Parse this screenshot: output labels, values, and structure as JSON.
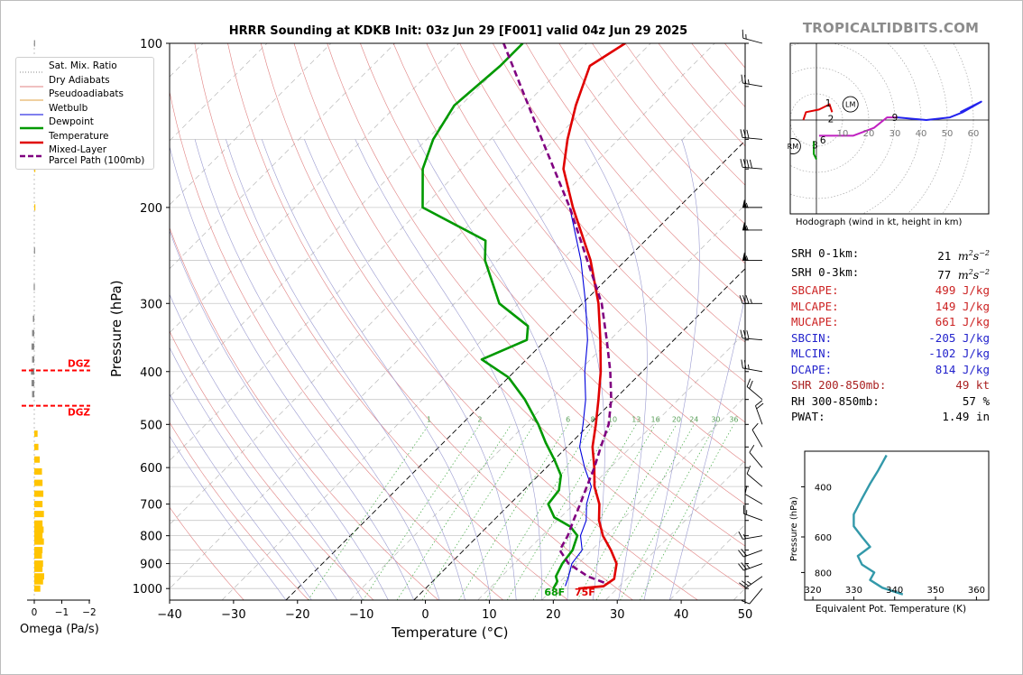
{
  "header": {
    "title": "HRRR Sounding at KDKB Init: 03z Jun 29 [F001] valid 04z Jun 29 2025",
    "brand": "TROPICALTIDBITS.COM"
  },
  "colors": {
    "temperature": "#e00000",
    "dewpoint": "#009900",
    "wetbulb": "#0000dd",
    "parcel": "#800080",
    "dry_adiabat": "#e08080",
    "pseudoadiabat": "#9a9ad0",
    "mixing_ratio": "#44aa44",
    "dgz": "#ff0000",
    "omega": "#ffc400",
    "theta_e": "#3399aa"
  },
  "legend": {
    "items": [
      {
        "label": "Sat. Mix. Ratio",
        "style": "dotted-gray"
      },
      {
        "label": "Dry Adiabats",
        "style": "red-thin"
      },
      {
        "label": "Pseudoadiabats",
        "style": "orange-thin"
      },
      {
        "label": "Wetbulb",
        "style": "blue-thin"
      },
      {
        "label": "Dewpoint",
        "style": "green-thick"
      },
      {
        "label": "Temperature",
        "style": "red-thick"
      },
      {
        "label": "Mixed-Layer",
        "style": "purple-dashed"
      },
      {
        "label": "Parcel Path (100mb)",
        "style": "none"
      }
    ]
  },
  "chart_data": [
    {
      "type": "skew-t",
      "title": "HRRR Sounding at KDKB Init: 03z Jun 29 [F001] valid 04z Jun 29 2025",
      "xlabel": "Temperature (°C)",
      "ylabel": "Pressure (hPa)",
      "xlim": [
        -40,
        50
      ],
      "ylim": [
        1050,
        100
      ],
      "log_y": true,
      "grid": true,
      "x_ticks": [
        -40,
        -30,
        -20,
        -10,
        0,
        10,
        20,
        30,
        40,
        50
      ],
      "x_tick_labels": [
        "−40",
        "−30",
        "−20",
        "−10",
        "0",
        "10",
        "20",
        "30",
        "40",
        "50"
      ],
      "y_ticks": [
        1000,
        900,
        800,
        700,
        600,
        500,
        400,
        300,
        200,
        100
      ],
      "y_tick_labels": [
        "1000",
        "900",
        "800",
        "700",
        "600",
        "500",
        "400",
        "300",
        "200",
        "100"
      ],
      "mixing_ratio_labels": [
        "1",
        "2",
        "3",
        "4",
        "6",
        "8",
        "10",
        "13",
        "16",
        "20",
        "24",
        "30",
        "36"
      ],
      "surface_labels": {
        "dewpoint": "68F",
        "temperature": "75F"
      },
      "series": [
        {
          "name": "Temperature",
          "points": [
            [
              1000,
              23.9
            ],
            [
              990,
              27.5
            ],
            [
              960,
              28
            ],
            [
              900,
              26
            ],
            [
              850,
              23
            ],
            [
              800,
              19.5
            ],
            [
              750,
              16.5
            ],
            [
              700,
              14
            ],
            [
              650,
              10.5
            ],
            [
              600,
              7.5
            ],
            [
              550,
              4
            ],
            [
              500,
              1
            ],
            [
              450,
              -2.5
            ],
            [
              400,
              -6.5
            ],
            [
              350,
              -11.5
            ],
            [
              300,
              -17.5
            ],
            [
              250,
              -25.5
            ],
            [
              200,
              -36.5
            ],
            [
              170,
              -44
            ],
            [
              150,
              -48
            ],
            [
              130,
              -52
            ],
            [
              110,
              -56
            ],
            [
              100,
              -54
            ]
          ]
        },
        {
          "name": "Dewpoint",
          "points": [
            [
              1000,
              20
            ],
            [
              970,
              19.5
            ],
            [
              950,
              18.5
            ],
            [
              900,
              17.5
            ],
            [
              850,
              17
            ],
            [
              800,
              15.5
            ],
            [
              770,
              13
            ],
            [
              740,
              9
            ],
            [
              700,
              6
            ],
            [
              660,
              5.5
            ],
            [
              620,
              3.5
            ],
            [
              580,
              0
            ],
            [
              540,
              -4
            ],
            [
              500,
              -8
            ],
            [
              450,
              -14
            ],
            [
              410,
              -20
            ],
            [
              380,
              -27
            ],
            [
              350,
              -23
            ],
            [
              330,
              -25
            ],
            [
              300,
              -33
            ],
            [
              250,
              -42
            ],
            [
              230,
              -45
            ],
            [
              200,
              -60
            ],
            [
              170,
              -66
            ],
            [
              150,
              -69
            ],
            [
              130,
              -71
            ],
            [
              110,
              -70
            ],
            [
              100,
              -70
            ]
          ]
        },
        {
          "name": "Wetbulb",
          "points": [
            [
              990,
              21.5
            ],
            [
              950,
              20.5
            ],
            [
              900,
              19
            ],
            [
              850,
              18.5
            ],
            [
              800,
              16
            ],
            [
              750,
              14.5
            ],
            [
              700,
              12
            ],
            [
              650,
              10
            ],
            [
              600,
              6
            ],
            [
              550,
              2
            ],
            [
              500,
              -1
            ],
            [
              450,
              -4.5
            ],
            [
              400,
              -9
            ],
            [
              350,
              -13.5
            ],
            [
              300,
              -19.5
            ],
            [
              250,
              -27
            ],
            [
              200,
              -37
            ]
          ]
        },
        {
          "name": "Mixed-Layer Parcel Path (100mb)",
          "points": [
            [
              975,
              27
            ],
            [
              950,
              23.5
            ],
            [
              900,
              18.5
            ],
            [
              850,
              15
            ],
            [
              800,
              14
            ],
            [
              750,
              12.5
            ],
            [
              700,
              11
            ],
            [
              650,
              9.3
            ],
            [
              600,
              7.5
            ],
            [
              550,
              5.3
            ],
            [
              500,
              3
            ],
            [
              450,
              -0.5
            ],
            [
              400,
              -5
            ],
            [
              350,
              -10.5
            ],
            [
              300,
              -17
            ],
            [
              250,
              -26
            ],
            [
              200,
              -37
            ],
            [
              150,
              -52
            ],
            [
              100,
              -73
            ]
          ]
        }
      ]
    },
    {
      "type": "line",
      "title": "Hodograph (wind in kt, height in km)",
      "rings": [
        10,
        20,
        30,
        40,
        50,
        60
      ],
      "height_labels": [
        "1",
        "2",
        "3",
        "6",
        "9"
      ],
      "markers": [
        "LM",
        "RM"
      ],
      "series": [
        {
          "name": "0-3 km",
          "color": "#e00000",
          "points": [
            [
              -5,
              0
            ],
            [
              -4,
              3
            ],
            [
              1,
              4
            ],
            [
              5,
              6
            ],
            [
              6,
              3
            ]
          ]
        },
        {
          "name": "3-6 km",
          "color": "#009900",
          "points": [
            [
              -1,
              -8
            ],
            [
              -1,
              -13
            ],
            [
              0,
              -15
            ]
          ]
        },
        {
          "name": "6-9 km",
          "color": "#c020c0",
          "points": [
            [
              1,
              -6
            ],
            [
              6,
              -6
            ],
            [
              14,
              -6
            ],
            [
              22,
              -3
            ],
            [
              27,
              1
            ],
            [
              31,
              1
            ]
          ]
        },
        {
          "name": "9+ km",
          "color": "#2222ee",
          "points": [
            [
              31,
              1
            ],
            [
              42,
              0
            ],
            [
              51,
              1
            ],
            [
              56,
              3
            ],
            [
              63,
              7
            ],
            [
              55,
              3
            ]
          ]
        }
      ]
    },
    {
      "type": "line",
      "xlabel": "Equivalent Pot. Temperature (K)",
      "ylabel": "Pressure (hPa)",
      "xlim": [
        318,
        363
      ],
      "ylim": [
        1000,
        300
      ],
      "x_ticks": [
        320,
        330,
        340,
        350,
        360
      ],
      "y_ticks": [
        400,
        600,
        800
      ],
      "series": [
        {
          "name": "Theta-E",
          "points": [
            [
              342,
              955
            ],
            [
              337,
              905
            ],
            [
              334,
              850
            ],
            [
              335,
              800
            ],
            [
              332,
              750
            ],
            [
              331,
              700
            ],
            [
              334,
              650
            ],
            [
              332,
              600
            ],
            [
              330,
              550
            ],
            [
              330,
              500
            ],
            [
              332,
              440
            ],
            [
              334,
              390
            ],
            [
              336,
              350
            ],
            [
              338,
              310
            ]
          ]
        }
      ]
    },
    {
      "type": "bar",
      "xlabel": "Omega (Pa/s)",
      "x_ticks": [
        "0",
        "−1",
        "−2"
      ],
      "dgz_label": "DGZ",
      "dgz_levels_hpa": [
        398,
        462
      ],
      "values_pa_s": [
        [
          1000,
          -0.22
        ],
        [
          970,
          -0.32
        ],
        [
          950,
          -0.36
        ],
        [
          920,
          -0.3
        ],
        [
          900,
          -0.32
        ],
        [
          870,
          -0.28
        ],
        [
          850,
          -0.3
        ],
        [
          820,
          -0.35
        ],
        [
          800,
          -0.3
        ],
        [
          780,
          -0.34
        ],
        [
          760,
          -0.3
        ],
        [
          730,
          -0.35
        ],
        [
          700,
          -0.3
        ],
        [
          670,
          -0.33
        ],
        [
          640,
          -0.3
        ],
        [
          610,
          -0.28
        ],
        [
          580,
          -0.2
        ],
        [
          550,
          -0.15
        ],
        [
          520,
          -0.12
        ],
        [
          440,
          0.08
        ],
        [
          420,
          0.1
        ],
        [
          400,
          0.12
        ],
        [
          380,
          0.08
        ],
        [
          360,
          0.1
        ],
        [
          340,
          0.08
        ],
        [
          320,
          0.05
        ],
        [
          280,
          0.02
        ],
        [
          240,
          0.01
        ],
        [
          200,
          -0.02
        ],
        [
          170,
          -0.03
        ],
        [
          150,
          -0.03
        ],
        [
          130,
          -0.02
        ],
        [
          115,
          -0.03
        ],
        [
          100,
          0.01
        ]
      ]
    }
  ],
  "wind_barbs": [
    {
      "p": 1000,
      "speed_kt": 10,
      "dir_deg": 220
    },
    {
      "p": 950,
      "speed_kt": 25,
      "dir_deg": 235
    },
    {
      "p": 900,
      "speed_kt": 25,
      "dir_deg": 250
    },
    {
      "p": 850,
      "speed_kt": 20,
      "dir_deg": 250
    },
    {
      "p": 800,
      "speed_kt": 15,
      "dir_deg": 260
    },
    {
      "p": 750,
      "speed_kt": 15,
      "dir_deg": 290
    },
    {
      "p": 700,
      "speed_kt": 10,
      "dir_deg": 300
    },
    {
      "p": 650,
      "speed_kt": 10,
      "dir_deg": 310
    },
    {
      "p": 600,
      "speed_kt": 10,
      "dir_deg": 320
    },
    {
      "p": 550,
      "speed_kt": 10,
      "dir_deg": 330
    },
    {
      "p": 500,
      "speed_kt": 20,
      "dir_deg": 340
    },
    {
      "p": 450,
      "speed_kt": 20,
      "dir_deg": 310
    },
    {
      "p": 400,
      "speed_kt": 25,
      "dir_deg": 280
    },
    {
      "p": 350,
      "speed_kt": 30,
      "dir_deg": 275
    },
    {
      "p": 300,
      "speed_kt": 35,
      "dir_deg": 270
    },
    {
      "p": 250,
      "speed_kt": 55,
      "dir_deg": 270
    },
    {
      "p": 220,
      "speed_kt": 55,
      "dir_deg": 270
    },
    {
      "p": 200,
      "speed_kt": 55,
      "dir_deg": 270
    },
    {
      "p": 170,
      "speed_kt": 40,
      "dir_deg": 275
    },
    {
      "p": 150,
      "speed_kt": 30,
      "dir_deg": 275
    },
    {
      "p": 120,
      "speed_kt": 25,
      "dir_deg": 280
    },
    {
      "p": 100,
      "speed_kt": 15,
      "dir_deg": 285
    }
  ],
  "parameters": [
    {
      "label": "SRH 0-1km:",
      "value": "21",
      "unit": "m2s-2",
      "color": "#000000"
    },
    {
      "label": "SRH 0-3km:",
      "value": "77",
      "unit": "m2s-2",
      "color": "#000000"
    },
    {
      "label": "SBCAPE:",
      "value": "499 J/kg",
      "color": "#cc2222"
    },
    {
      "label": "MLCAPE:",
      "value": "149 J/kg",
      "color": "#cc2222"
    },
    {
      "label": "MUCAPE:",
      "value": "661 J/kg",
      "color": "#cc2222"
    },
    {
      "label": "SBCIN:",
      "value": "-205 J/kg",
      "color": "#2222cc"
    },
    {
      "label": "MLCIN:",
      "value": "-102 J/kg",
      "color": "#2222cc"
    },
    {
      "label": "DCAPE:",
      "value": "814 J/kg",
      "color": "#2222cc"
    },
    {
      "label": "SHR 200-850mb:",
      "value": "49 kt",
      "color": "#aa2222"
    },
    {
      "label": "RH 300-850mb:",
      "value": "57 %",
      "color": "#000000"
    },
    {
      "label": "PWAT:",
      "value": "1.49 in",
      "color": "#000000"
    }
  ]
}
